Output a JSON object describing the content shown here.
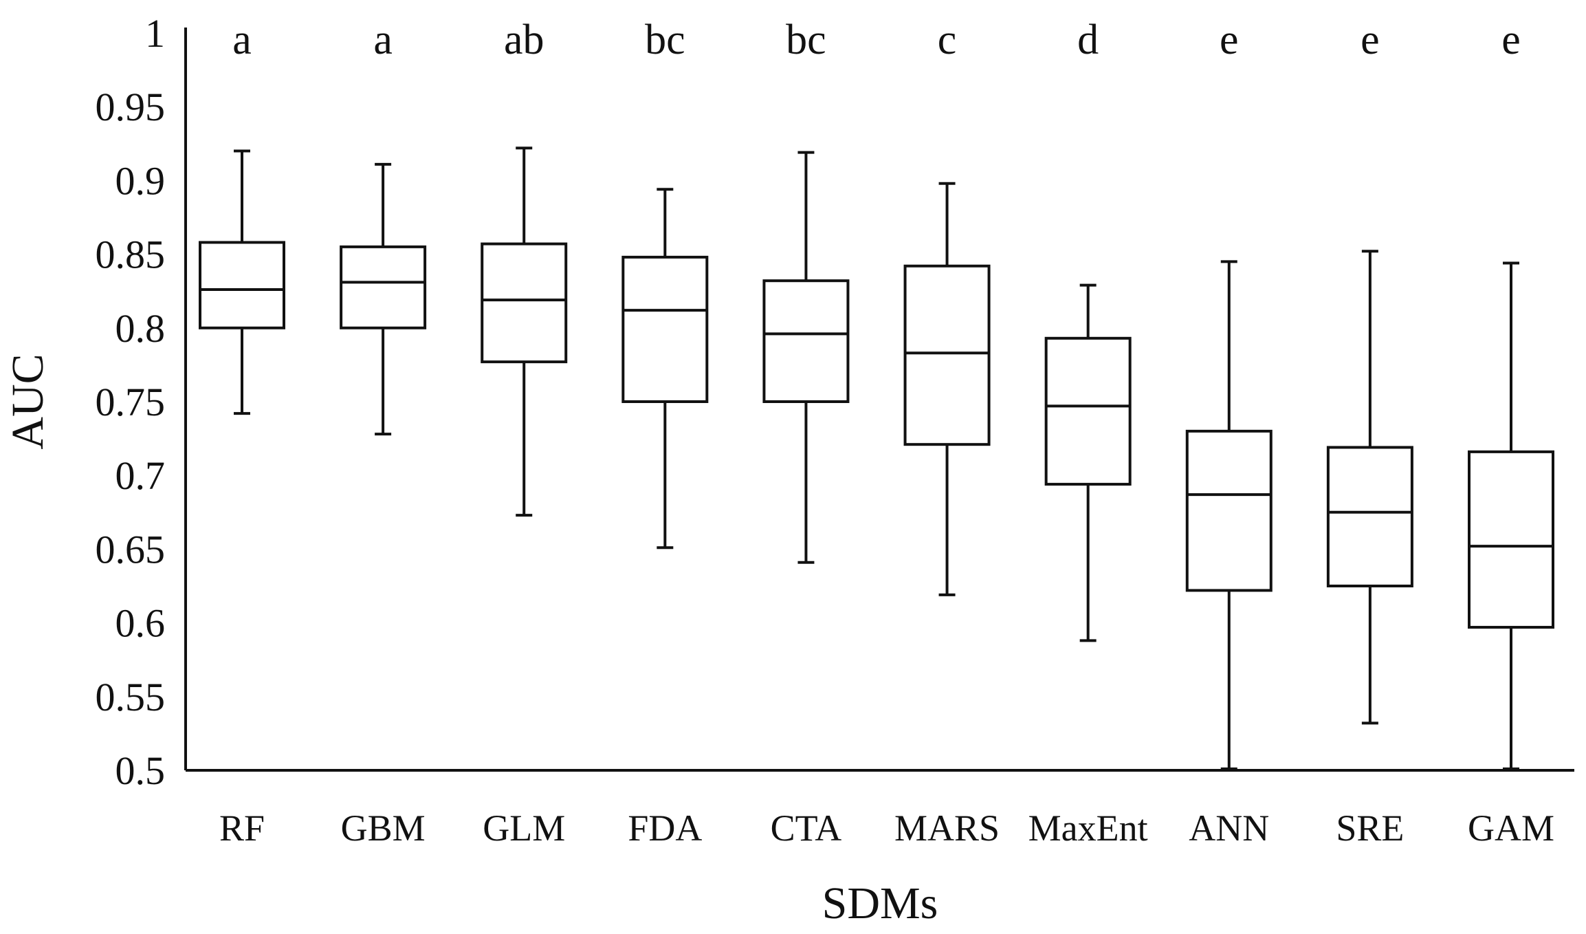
{
  "chart_data": {
    "type": "boxplot",
    "xlabel": "SDMs",
    "ylabel": "AUC",
    "ylim": [
      0.5,
      1
    ],
    "y_ticks": [
      "0.5",
      "0.55",
      "0.6",
      "0.65",
      "0.7",
      "0.75",
      "0.8",
      "0.85",
      "0.9",
      "0.95",
      "1"
    ],
    "grid": false,
    "legend": "none",
    "categories": [
      "RF",
      "GBM",
      "GLM",
      "FDA",
      "CTA",
      "MARS",
      "MaxEnt",
      "ANN",
      "SRE",
      "GAM"
    ],
    "significance_letters": [
      "a",
      "a",
      "ab",
      "bc",
      "bc",
      "c",
      "d",
      "e",
      "e",
      "e"
    ],
    "boxes": [
      {
        "min": 0.742,
        "q1": 0.8,
        "median": 0.826,
        "q3": 0.858,
        "max": 0.92
      },
      {
        "min": 0.728,
        "q1": 0.8,
        "median": 0.831,
        "q3": 0.855,
        "max": 0.911
      },
      {
        "min": 0.673,
        "q1": 0.777,
        "median": 0.819,
        "q3": 0.857,
        "max": 0.922
      },
      {
        "min": 0.651,
        "q1": 0.75,
        "median": 0.812,
        "q3": 0.848,
        "max": 0.894
      },
      {
        "min": 0.641,
        "q1": 0.75,
        "median": 0.796,
        "q3": 0.832,
        "max": 0.919
      },
      {
        "min": 0.619,
        "q1": 0.721,
        "median": 0.783,
        "q3": 0.842,
        "max": 0.898
      },
      {
        "min": 0.588,
        "q1": 0.694,
        "median": 0.747,
        "q3": 0.793,
        "max": 0.829
      },
      {
        "min": 0.501,
        "q1": 0.622,
        "median": 0.687,
        "q3": 0.73,
        "max": 0.845
      },
      {
        "min": 0.532,
        "q1": 0.625,
        "median": 0.675,
        "q3": 0.719,
        "max": 0.852
      },
      {
        "min": 0.501,
        "q1": 0.597,
        "median": 0.652,
        "q3": 0.716,
        "max": 0.844
      }
    ]
  }
}
